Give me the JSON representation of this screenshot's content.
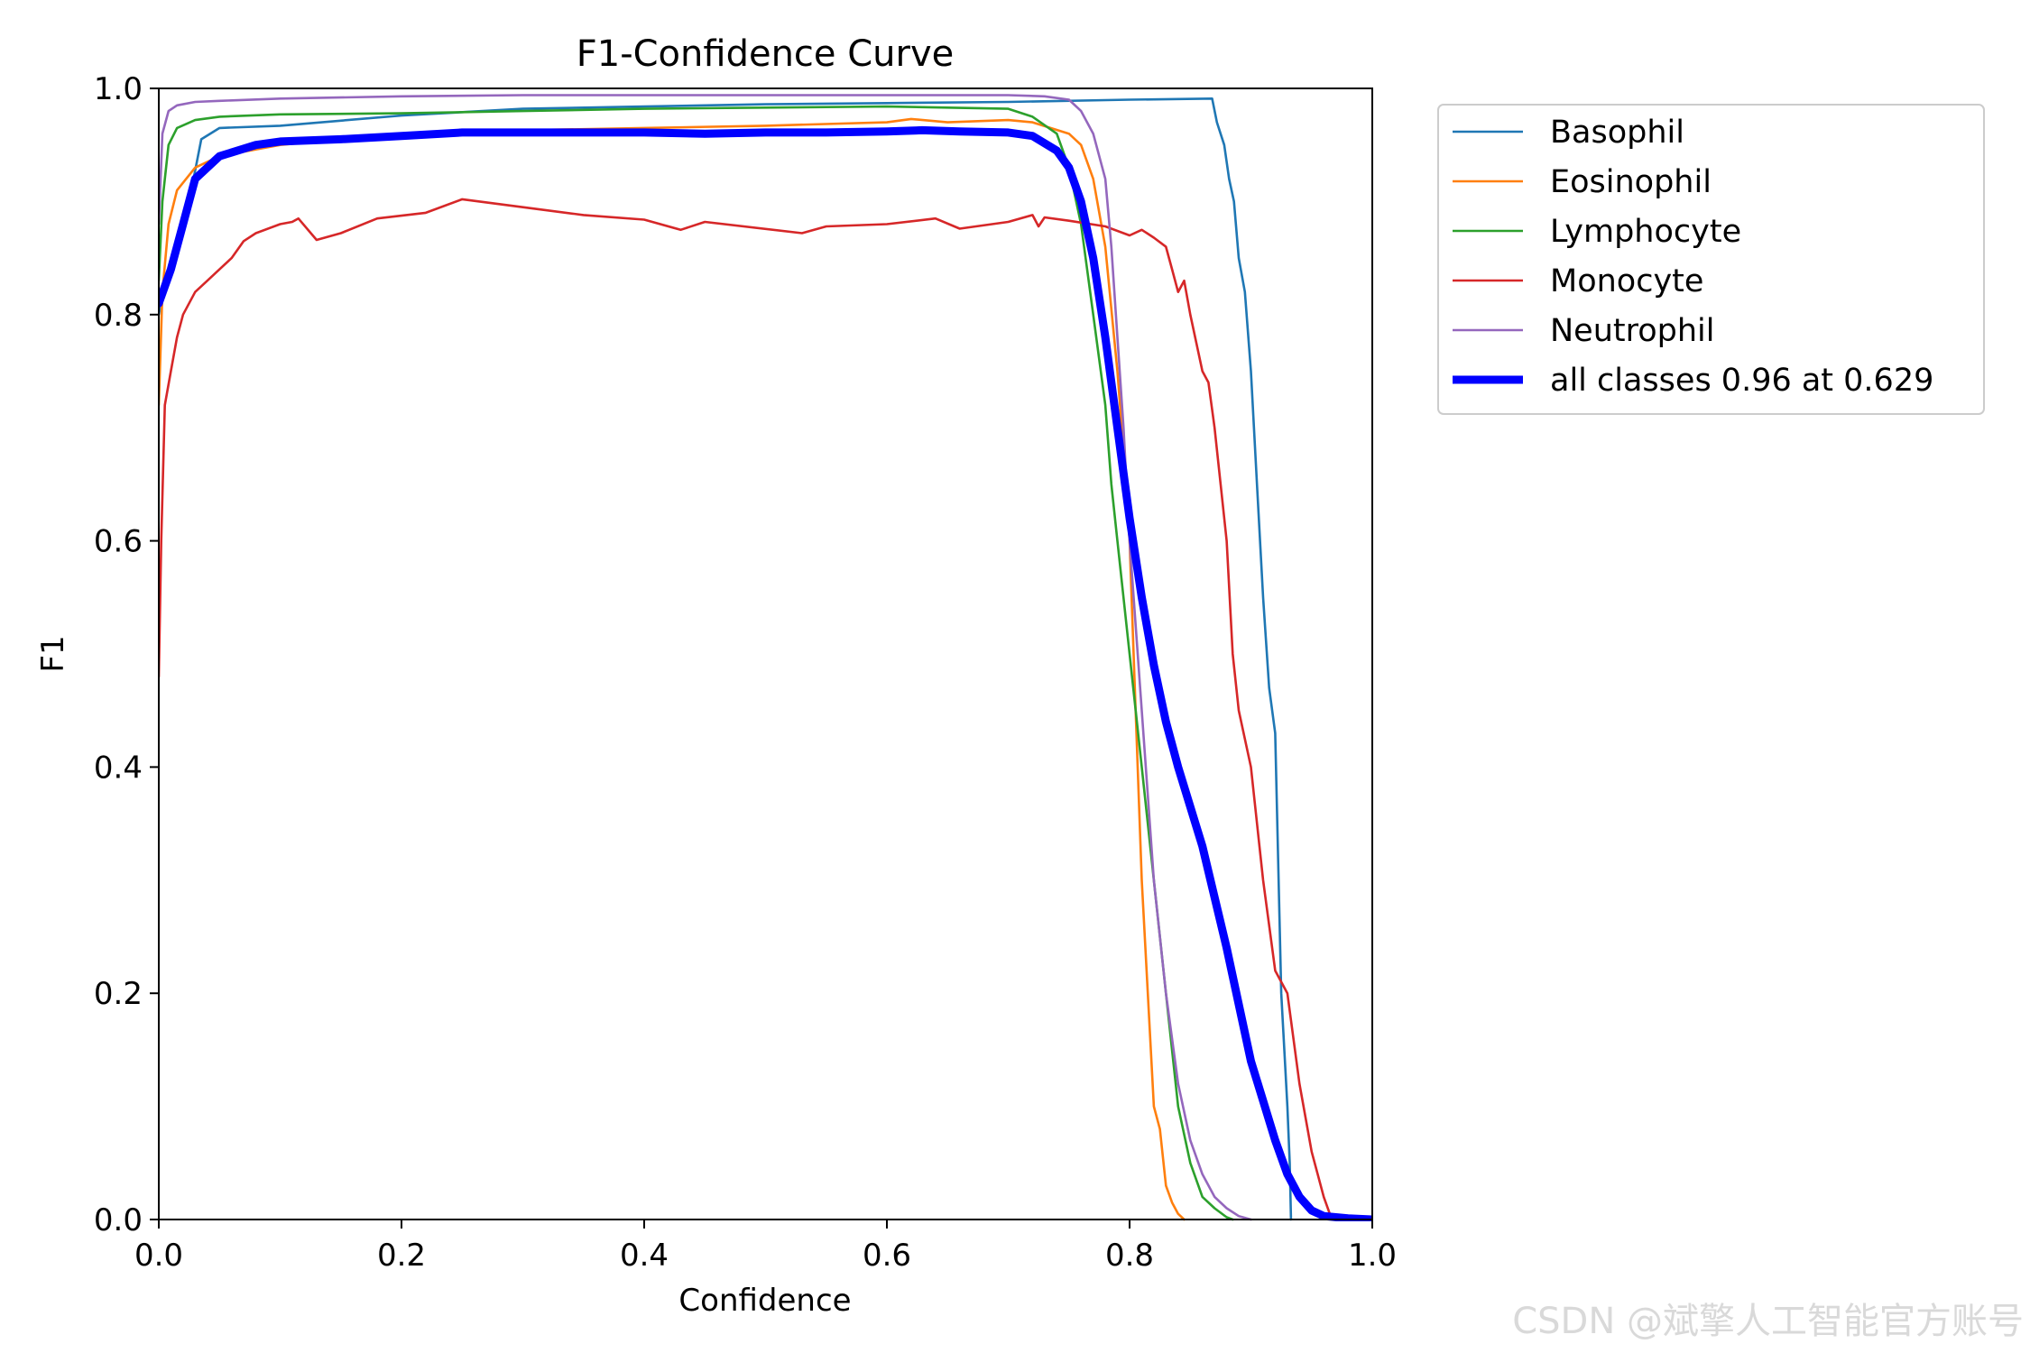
{
  "watermark": "CSDN @斌擎人工智能官方账号",
  "chart_data": {
    "type": "line",
    "title": "F1-Confidence Curve",
    "xlabel": "Confidence",
    "ylabel": "F1",
    "xlim": [
      0.0,
      1.0
    ],
    "ylim": [
      0.0,
      1.0
    ],
    "xticks": [
      0.0,
      0.2,
      0.4,
      0.6,
      0.8,
      1.0
    ],
    "yticks": [
      0.0,
      0.2,
      0.4,
      0.6,
      0.8,
      1.0
    ],
    "xtick_labels": [
      "0.0",
      "0.2",
      "0.4",
      "0.6",
      "0.8",
      "1.0"
    ],
    "ytick_labels": [
      "0.0",
      "0.2",
      "0.4",
      "0.6",
      "0.8",
      "1.0"
    ],
    "grid": false,
    "legend_position": "outside-top-right",
    "series": [
      {
        "name": "Basophil",
        "color": "#1f77b4",
        "width": "thin",
        "points": [
          [
            0.0,
            0.8
          ],
          [
            0.005,
            0.83
          ],
          [
            0.015,
            0.86
          ],
          [
            0.025,
            0.9
          ],
          [
            0.035,
            0.955
          ],
          [
            0.05,
            0.965
          ],
          [
            0.1,
            0.967
          ],
          [
            0.2,
            0.976
          ],
          [
            0.3,
            0.982
          ],
          [
            0.4,
            0.984
          ],
          [
            0.5,
            0.986
          ],
          [
            0.6,
            0.987
          ],
          [
            0.7,
            0.988
          ],
          [
            0.8,
            0.99
          ],
          [
            0.868,
            0.991
          ],
          [
            0.872,
            0.97
          ],
          [
            0.878,
            0.95
          ],
          [
            0.882,
            0.92
          ],
          [
            0.886,
            0.9
          ],
          [
            0.89,
            0.85
          ],
          [
            0.895,
            0.82
          ],
          [
            0.9,
            0.75
          ],
          [
            0.905,
            0.65
          ],
          [
            0.91,
            0.55
          ],
          [
            0.915,
            0.47
          ],
          [
            0.92,
            0.43
          ],
          [
            0.925,
            0.2
          ],
          [
            0.93,
            0.1
          ],
          [
            0.932,
            0.05
          ],
          [
            0.933,
            0.0
          ]
        ]
      },
      {
        "name": "Eosinophil",
        "color": "#ff7f0e",
        "width": "thin",
        "points": [
          [
            0.0,
            0.72
          ],
          [
            0.003,
            0.82
          ],
          [
            0.008,
            0.88
          ],
          [
            0.015,
            0.91
          ],
          [
            0.03,
            0.93
          ],
          [
            0.05,
            0.94
          ],
          [
            0.1,
            0.95
          ],
          [
            0.2,
            0.96
          ],
          [
            0.3,
            0.963
          ],
          [
            0.4,
            0.965
          ],
          [
            0.5,
            0.967
          ],
          [
            0.6,
            0.97
          ],
          [
            0.62,
            0.973
          ],
          [
            0.65,
            0.97
          ],
          [
            0.7,
            0.972
          ],
          [
            0.72,
            0.97
          ],
          [
            0.75,
            0.96
          ],
          [
            0.76,
            0.95
          ],
          [
            0.77,
            0.92
          ],
          [
            0.78,
            0.86
          ],
          [
            0.79,
            0.75
          ],
          [
            0.795,
            0.68
          ],
          [
            0.8,
            0.6
          ],
          [
            0.805,
            0.45
          ],
          [
            0.81,
            0.3
          ],
          [
            0.815,
            0.2
          ],
          [
            0.82,
            0.1
          ],
          [
            0.825,
            0.08
          ],
          [
            0.83,
            0.03
          ],
          [
            0.835,
            0.015
          ],
          [
            0.84,
            0.005
          ],
          [
            0.845,
            0.0
          ]
        ]
      },
      {
        "name": "Lymphocyte",
        "color": "#2ca02c",
        "width": "thin",
        "points": [
          [
            0.0,
            0.83
          ],
          [
            0.003,
            0.9
          ],
          [
            0.008,
            0.95
          ],
          [
            0.015,
            0.965
          ],
          [
            0.03,
            0.972
          ],
          [
            0.05,
            0.975
          ],
          [
            0.1,
            0.977
          ],
          [
            0.2,
            0.978
          ],
          [
            0.3,
            0.98
          ],
          [
            0.4,
            0.982
          ],
          [
            0.5,
            0.983
          ],
          [
            0.6,
            0.984
          ],
          [
            0.7,
            0.982
          ],
          [
            0.72,
            0.975
          ],
          [
            0.74,
            0.96
          ],
          [
            0.75,
            0.93
          ],
          [
            0.76,
            0.88
          ],
          [
            0.77,
            0.8
          ],
          [
            0.78,
            0.72
          ],
          [
            0.785,
            0.65
          ],
          [
            0.79,
            0.6
          ],
          [
            0.8,
            0.5
          ],
          [
            0.81,
            0.4
          ],
          [
            0.82,
            0.3
          ],
          [
            0.83,
            0.2
          ],
          [
            0.84,
            0.1
          ],
          [
            0.85,
            0.05
          ],
          [
            0.86,
            0.02
          ],
          [
            0.87,
            0.01
          ],
          [
            0.88,
            0.002
          ],
          [
            0.885,
            0.0
          ]
        ]
      },
      {
        "name": "Monocyte",
        "color": "#d62728",
        "width": "thin",
        "points": [
          [
            0.0,
            0.48
          ],
          [
            0.002,
            0.6
          ],
          [
            0.005,
            0.72
          ],
          [
            0.01,
            0.75
          ],
          [
            0.015,
            0.78
          ],
          [
            0.02,
            0.8
          ],
          [
            0.03,
            0.82
          ],
          [
            0.04,
            0.83
          ],
          [
            0.05,
            0.84
          ],
          [
            0.06,
            0.85
          ],
          [
            0.07,
            0.865
          ],
          [
            0.08,
            0.872
          ],
          [
            0.1,
            0.88
          ],
          [
            0.11,
            0.882
          ],
          [
            0.115,
            0.885
          ],
          [
            0.13,
            0.866
          ],
          [
            0.15,
            0.872
          ],
          [
            0.18,
            0.885
          ],
          [
            0.22,
            0.89
          ],
          [
            0.25,
            0.902
          ],
          [
            0.3,
            0.895
          ],
          [
            0.35,
            0.888
          ],
          [
            0.4,
            0.884
          ],
          [
            0.43,
            0.875
          ],
          [
            0.45,
            0.882
          ],
          [
            0.53,
            0.872
          ],
          [
            0.55,
            0.878
          ],
          [
            0.6,
            0.88
          ],
          [
            0.64,
            0.885
          ],
          [
            0.66,
            0.876
          ],
          [
            0.7,
            0.882
          ],
          [
            0.72,
            0.888
          ],
          [
            0.725,
            0.878
          ],
          [
            0.73,
            0.886
          ],
          [
            0.75,
            0.883
          ],
          [
            0.78,
            0.878
          ],
          [
            0.8,
            0.87
          ],
          [
            0.81,
            0.875
          ],
          [
            0.82,
            0.868
          ],
          [
            0.83,
            0.86
          ],
          [
            0.835,
            0.84
          ],
          [
            0.84,
            0.82
          ],
          [
            0.845,
            0.83
          ],
          [
            0.85,
            0.8
          ],
          [
            0.86,
            0.75
          ],
          [
            0.865,
            0.74
          ],
          [
            0.87,
            0.7
          ],
          [
            0.875,
            0.65
          ],
          [
            0.88,
            0.6
          ],
          [
            0.885,
            0.5
          ],
          [
            0.89,
            0.45
          ],
          [
            0.9,
            0.4
          ],
          [
            0.91,
            0.3
          ],
          [
            0.92,
            0.22
          ],
          [
            0.93,
            0.2
          ],
          [
            0.94,
            0.12
          ],
          [
            0.95,
            0.06
          ],
          [
            0.955,
            0.04
          ],
          [
            0.96,
            0.02
          ],
          [
            0.965,
            0.005
          ],
          [
            0.975,
            0.0
          ],
          [
            1.0,
            0.0
          ]
        ]
      },
      {
        "name": "Neutrophil",
        "color": "#9467bd",
        "width": "thin",
        "points": [
          [
            0.0,
            0.88
          ],
          [
            0.003,
            0.96
          ],
          [
            0.008,
            0.98
          ],
          [
            0.015,
            0.985
          ],
          [
            0.03,
            0.988
          ],
          [
            0.05,
            0.989
          ],
          [
            0.1,
            0.991
          ],
          [
            0.2,
            0.993
          ],
          [
            0.3,
            0.994
          ],
          [
            0.4,
            0.994
          ],
          [
            0.5,
            0.994
          ],
          [
            0.6,
            0.994
          ],
          [
            0.7,
            0.994
          ],
          [
            0.73,
            0.993
          ],
          [
            0.75,
            0.99
          ],
          [
            0.76,
            0.98
          ],
          [
            0.77,
            0.96
          ],
          [
            0.78,
            0.92
          ],
          [
            0.785,
            0.86
          ],
          [
            0.79,
            0.78
          ],
          [
            0.795,
            0.7
          ],
          [
            0.8,
            0.6
          ],
          [
            0.81,
            0.45
          ],
          [
            0.82,
            0.3
          ],
          [
            0.83,
            0.2
          ],
          [
            0.84,
            0.12
          ],
          [
            0.85,
            0.07
          ],
          [
            0.86,
            0.04
          ],
          [
            0.87,
            0.02
          ],
          [
            0.88,
            0.01
          ],
          [
            0.89,
            0.003
          ],
          [
            0.9,
            0.0
          ]
        ]
      },
      {
        "name": "all classes 0.96 at 0.629",
        "color": "#0000ff",
        "width": "thick",
        "points": [
          [
            0.0,
            0.81
          ],
          [
            0.01,
            0.84
          ],
          [
            0.02,
            0.88
          ],
          [
            0.03,
            0.92
          ],
          [
            0.05,
            0.94
          ],
          [
            0.08,
            0.95
          ],
          [
            0.1,
            0.953
          ],
          [
            0.15,
            0.955
          ],
          [
            0.2,
            0.958
          ],
          [
            0.25,
            0.961
          ],
          [
            0.3,
            0.961
          ],
          [
            0.4,
            0.961
          ],
          [
            0.45,
            0.96
          ],
          [
            0.5,
            0.961
          ],
          [
            0.55,
            0.961
          ],
          [
            0.6,
            0.962
          ],
          [
            0.629,
            0.963
          ],
          [
            0.66,
            0.962
          ],
          [
            0.7,
            0.961
          ],
          [
            0.72,
            0.958
          ],
          [
            0.74,
            0.945
          ],
          [
            0.75,
            0.93
          ],
          [
            0.76,
            0.9
          ],
          [
            0.77,
            0.85
          ],
          [
            0.78,
            0.78
          ],
          [
            0.79,
            0.7
          ],
          [
            0.8,
            0.62
          ],
          [
            0.81,
            0.55
          ],
          [
            0.82,
            0.49
          ],
          [
            0.83,
            0.44
          ],
          [
            0.84,
            0.4
          ],
          [
            0.86,
            0.33
          ],
          [
            0.88,
            0.24
          ],
          [
            0.9,
            0.14
          ],
          [
            0.92,
            0.07
          ],
          [
            0.93,
            0.04
          ],
          [
            0.94,
            0.02
          ],
          [
            0.95,
            0.008
          ],
          [
            0.96,
            0.003
          ],
          [
            0.98,
            0.001
          ],
          [
            1.0,
            0.0
          ]
        ]
      }
    ]
  }
}
